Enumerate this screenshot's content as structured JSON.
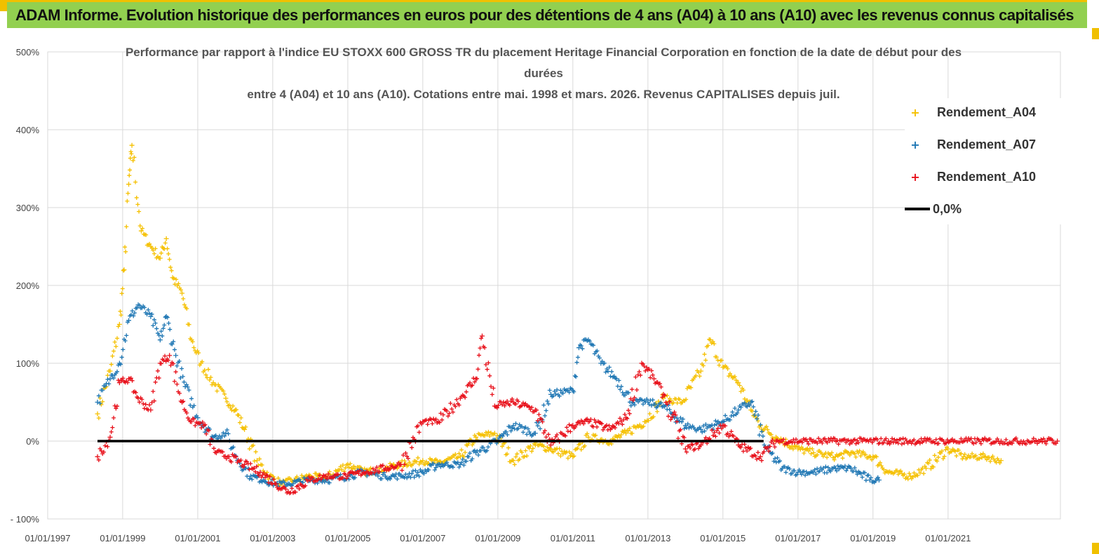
{
  "header": {
    "title": "ADAM Informe. Evolution historique des performances en euros pour des détentions de 4 ans (A04) à 10 ans (A10) avec les revenus connus capitalisés"
  },
  "colors": {
    "banner": "#92d050",
    "a04": "#f5c000",
    "a07": "#1f77b4",
    "a10": "#e8101a",
    "zero": "#000000",
    "grid": "#d9d9d9"
  },
  "chart_data": {
    "type": "scatter",
    "title_lines": [
      "Performance par rapport à l'indice EU STOXX 600 GROSS TR  du placement Heritage Financial Corporation en fonction de la date de début pour des durées",
      "entre 4 (A04) et 10 ans (A10).  Cotations entre mai. 1998 et mars. 2026. Revenus CAPITALISES depuis juil."
    ],
    "x_ticks": [
      "01/01/1997",
      "01/01/1999",
      "01/01/2001",
      "01/01/2003",
      "01/01/2005",
      "01/01/2007",
      "01/01/2009",
      "01/01/2011",
      "01/01/2013",
      "01/01/2015",
      "01/01/2017",
      "01/01/2019",
      "01/01/2021"
    ],
    "x_range": [
      "1997-01-01",
      "2023-12-31"
    ],
    "y_ticks": [
      "500%",
      "400%",
      "300%",
      "200%",
      "100%",
      "0%",
      "- 100%"
    ],
    "ylim": [
      -100,
      500
    ],
    "legend_placement": "top-right",
    "grid": true,
    "series": [
      {
        "name": "Rendement_A04",
        "marker": "+",
        "x": [
          "1998-05-01",
          "1998-09-01",
          "1998-12-01",
          "1999-01-15",
          "1999-03-01",
          "1999-04-01",
          "1999-07-01",
          "1999-10-01",
          "2000-01-01",
          "2000-03-01",
          "2000-05-01",
          "2000-08-01",
          "2000-11-01",
          "2001-02-01",
          "2001-06-01",
          "2001-10-01",
          "2002-01-01",
          "2002-04-01",
          "2002-08-01",
          "2002-12-01",
          "2003-04-01",
          "2003-08-01",
          "2004-01-01",
          "2004-06-01",
          "2005-01-01",
          "2005-06-01",
          "2006-01-01",
          "2006-06-01",
          "2007-01-01",
          "2007-06-01",
          "2008-01-01",
          "2008-06-01",
          "2008-12-01",
          "2009-06-01",
          "2010-01-01",
          "2010-06-01",
          "2011-01-01",
          "2011-06-01",
          "2012-01-01",
          "2012-06-01",
          "2012-12-01",
          "2013-06-01",
          "2013-12-01",
          "2014-06-01",
          "2014-09-01",
          "2015-01-01",
          "2015-06-01",
          "2015-10-01",
          "2016-01-01",
          "2016-06-01",
          "2017-01-01",
          "2017-06-01",
          "2018-01-01",
          "2018-06-01",
          "2019-01-01",
          "2019-06-01",
          "2020-01-01",
          "2020-06-01",
          "2021-01-01",
          "2021-06-01",
          "2022-01-01",
          "2022-06-01"
        ],
        "y": [
          35,
          90,
          150,
          220,
          330,
          380,
          270,
          250,
          235,
          260,
          210,
          190,
          130,
          100,
          75,
          55,
          40,
          15,
          -25,
          -45,
          -55,
          -50,
          -45,
          -48,
          -30,
          -40,
          -35,
          -30,
          -25,
          -28,
          -20,
          5,
          10,
          -25,
          -5,
          -10,
          -20,
          5,
          0,
          10,
          25,
          55,
          50,
          90,
          130,
          95,
          75,
          40,
          20,
          5,
          -10,
          -15,
          -20,
          -15,
          -20,
          -40,
          -45,
          -35,
          -10,
          -20,
          -20,
          -25
        ]
      },
      {
        "name": "Rendement_A07",
        "marker": "+",
        "x": [
          "1998-05-01",
          "1998-09-01",
          "1998-12-01",
          "1999-03-01",
          "1999-06-01",
          "1999-10-01",
          "2000-01-01",
          "2000-03-01",
          "2000-06-01",
          "2000-09-01",
          "2001-01-01",
          "2001-06-01",
          "2001-10-01",
          "2002-02-01",
          "2002-06-01",
          "2002-10-01",
          "2003-02-01",
          "2003-06-01",
          "2004-01-01",
          "2004-06-01",
          "2005-01-01",
          "2005-06-01",
          "2006-01-01",
          "2006-06-01",
          "2007-01-01",
          "2007-06-01",
          "2008-01-01",
          "2008-06-01",
          "2009-01-01",
          "2009-06-01",
          "2010-01-01",
          "2010-06-01",
          "2011-01-01",
          "2011-03-01",
          "2011-06-01",
          "2011-10-01",
          "2012-03-01",
          "2012-08-01",
          "2013-01-01",
          "2013-06-01",
          "2014-01-01",
          "2014-06-01",
          "2015-01-01",
          "2015-06-01",
          "2015-10-01",
          "2016-03-01",
          "2016-08-01",
          "2017-01-01",
          "2017-06-01",
          "2018-01-01",
          "2018-06-01",
          "2018-12-01",
          "2019-03-01"
        ],
        "y": [
          50,
          80,
          100,
          155,
          175,
          160,
          130,
          160,
          110,
          70,
          30,
          5,
          10,
          -25,
          -45,
          -50,
          -55,
          -55,
          -50,
          -50,
          -45,
          -40,
          -45,
          -45,
          -40,
          -30,
          -30,
          -15,
          0,
          20,
          10,
          60,
          65,
          120,
          130,
          100,
          80,
          50,
          50,
          45,
          20,
          15,
          25,
          40,
          50,
          -10,
          -35,
          -40,
          -40,
          -35,
          -35,
          -50,
          -50
        ]
      },
      {
        "name": "Rendement_A10",
        "marker": "+",
        "x": [
          "1998-05-01",
          "1998-09-01",
          "1998-12-01",
          "1999-03-01",
          "1999-06-01",
          "1999-10-01",
          "2000-01-01",
          "2000-04-01",
          "2000-08-01",
          "2000-11-01",
          "2001-03-01",
          "2001-07-01",
          "2001-11-01",
          "2002-04-01",
          "2002-09-01",
          "2003-02-01",
          "2003-06-01",
          "2004-01-01",
          "2004-06-01",
          "2005-01-01",
          "2005-06-01",
          "2006-01-01",
          "2006-06-01",
          "2007-01-01",
          "2007-06-01",
          "2008-01-01",
          "2008-06-01",
          "2008-08-01",
          "2008-12-01",
          "2009-06-01",
          "2010-01-01",
          "2010-06-01",
          "2011-01-01",
          "2011-06-01",
          "2012-01-01",
          "2012-06-01",
          "2012-11-01",
          "2013-03-01",
          "2013-06-01",
          "2014-01-01",
          "2014-06-01",
          "2015-01-01",
          "2015-06-01",
          "2016-01-01",
          "2016-06-01",
          "2017-06-01",
          "2018-06-01",
          "2019-06-01",
          "2020-06-01",
          "2021-06-01",
          "2022-06-01",
          "2023-06-01",
          "2023-12-01"
        ],
        "y": [
          -20,
          5,
          75,
          80,
          55,
          40,
          100,
          110,
          50,
          25,
          20,
          -15,
          -20,
          -30,
          -40,
          -55,
          -65,
          -50,
          -45,
          -45,
          -40,
          -35,
          -30,
          25,
          25,
          55,
          80,
          135,
          45,
          50,
          40,
          -5,
          20,
          25,
          15,
          30,
          100,
          80,
          60,
          -10,
          -5,
          20,
          -5,
          -20,
          0,
          0,
          0,
          0,
          0,
          0,
          0,
          0,
          0
        ]
      },
      {
        "name": "0,0%",
        "type": "line",
        "x": [
          "1998-05-01",
          "2016-02-01"
        ],
        "y": [
          0,
          0
        ]
      }
    ]
  }
}
